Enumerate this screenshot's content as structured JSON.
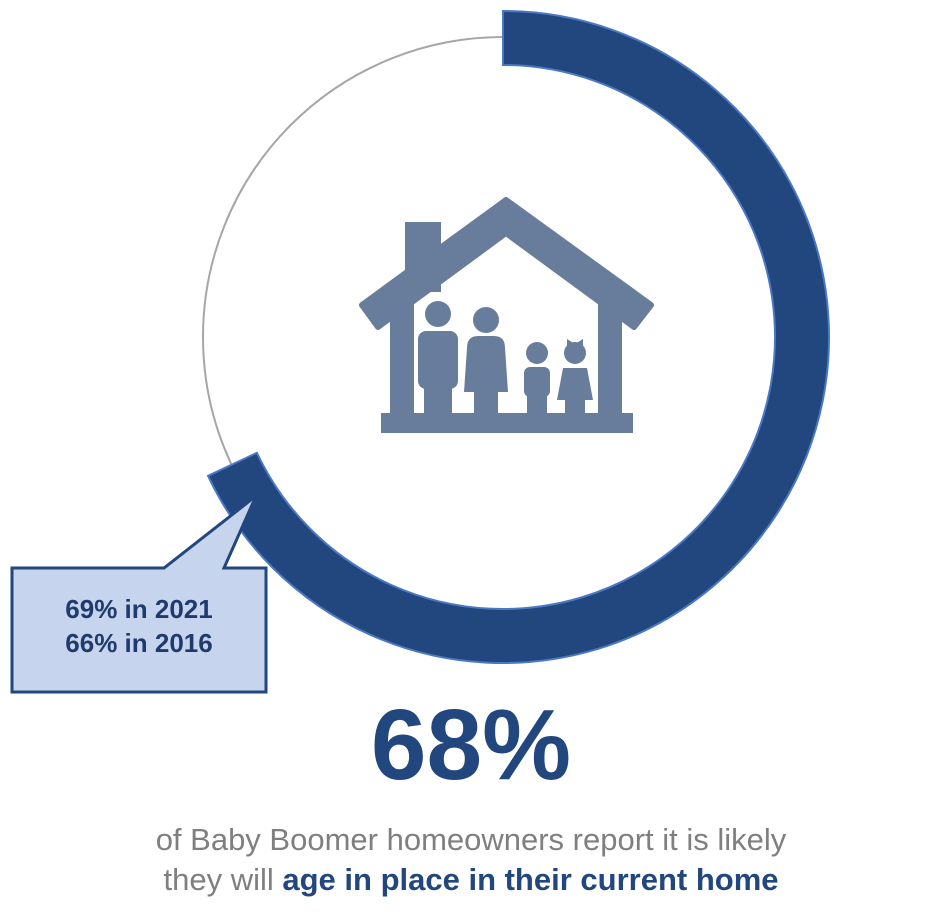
{
  "chart_data": {
    "type": "pie",
    "subtype": "donut",
    "values": [
      68,
      32
    ],
    "unit": "%",
    "colors": {
      "filled": "#22467e",
      "remainder_outline": "#a6a6a6",
      "icon": "#687c9c",
      "callout_fill": "#c6d5ed"
    },
    "center_value": "68%",
    "callout": {
      "line1": "69% in 2021",
      "line2": "66% in 2016"
    },
    "caption": {
      "line1": "of Baby Boomer homeowners report it is likely",
      "line2_prefix": "they will ",
      "line2_bold": "age in place in their current home"
    },
    "icon": "house-family-icon"
  }
}
